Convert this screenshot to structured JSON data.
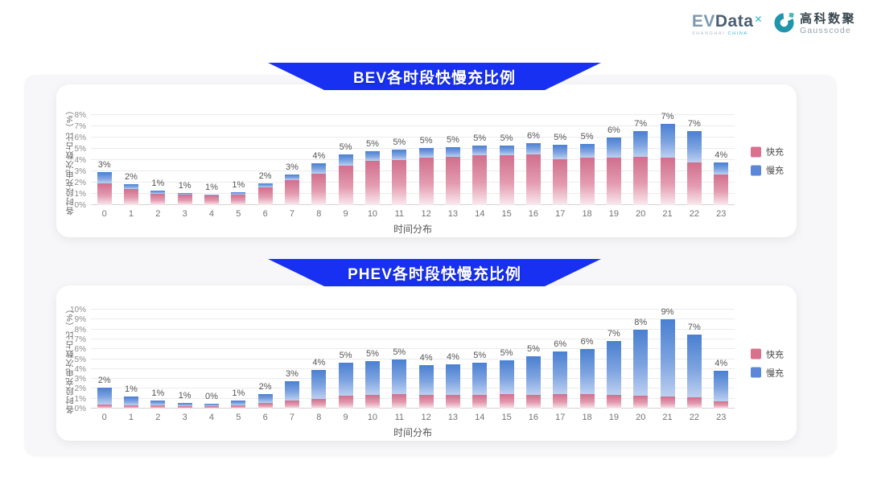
{
  "logo": {
    "evdata_ev": "EV",
    "evdata_data": "Data",
    "evdata_x": "✕",
    "evdata_sub_left": "SHANGHAI",
    "evdata_sub_right": "CHINA",
    "gausscode_cn": "高科数聚",
    "gausscode_en": "Gausscode",
    "teal": "#2fa9bd"
  },
  "colors": {
    "banner_blue": "#1730f2",
    "fast_pink": "#d9708c",
    "slow_blue": "#5c87d8",
    "outer_bg": "#f7f7f9"
  },
  "chart_data": [
    {
      "type": "bar",
      "stacked": true,
      "title": "BEV各时段快慢充比例",
      "xlabel": "时间分布",
      "ylabel": "各时段充电次数占比（%）",
      "ylim": [
        0,
        8
      ],
      "ytick_step": 1,
      "ytick_suffix": "%",
      "grid": true,
      "legend_position": "right",
      "categories": [
        0,
        1,
        2,
        3,
        4,
        5,
        6,
        7,
        8,
        9,
        10,
        11,
        12,
        13,
        14,
        15,
        16,
        17,
        18,
        19,
        20,
        21,
        22,
        23
      ],
      "series": [
        {
          "name": "快充",
          "color": "#d9708c",
          "gradient": [
            "#d06f8d",
            "#e39bb0",
            "#f9e9ee"
          ],
          "values": [
            1.9,
            1.4,
            1.0,
            0.9,
            0.85,
            0.95,
            1.55,
            2.2,
            2.8,
            3.5,
            3.9,
            4.0,
            4.2,
            4.3,
            4.45,
            4.4,
            4.5,
            4.05,
            4.2,
            4.2,
            4.3,
            4.2,
            3.8,
            2.7
          ]
        },
        {
          "name": "慢充",
          "color": "#5c87d8",
          "gradient": [
            "#4a7fd1",
            "#7ea4e0",
            "#bdd0f0"
          ],
          "values": [
            1.0,
            0.45,
            0.3,
            0.2,
            0.1,
            0.2,
            0.35,
            0.5,
            0.9,
            1.0,
            0.9,
            0.9,
            0.85,
            0.85,
            0.85,
            0.9,
            1.0,
            1.3,
            1.25,
            1.8,
            2.3,
            3.0,
            2.8,
            1.1
          ]
        }
      ],
      "total_labels": [
        "3%",
        "2%",
        "1%",
        "1%",
        "1%",
        "1%",
        "2%",
        "3%",
        "4%",
        "5%",
        "5%",
        "5%",
        "5%",
        "5%",
        "5%",
        "5%",
        "6%",
        "5%",
        "5%",
        "6%",
        "7%",
        "7%",
        "7%",
        "4%"
      ]
    },
    {
      "type": "bar",
      "stacked": true,
      "title": "PHEV各时段快慢充比例",
      "xlabel": "时间分布",
      "ylabel": "各时段充电次数占比（%）",
      "ylim": [
        0,
        10
      ],
      "ytick_step": 1,
      "ytick_suffix": "%",
      "grid": true,
      "legend_position": "right",
      "categories": [
        0,
        1,
        2,
        3,
        4,
        5,
        6,
        7,
        8,
        9,
        10,
        11,
        12,
        13,
        14,
        15,
        16,
        17,
        18,
        19,
        20,
        21,
        22,
        23
      ],
      "series": [
        {
          "name": "快充",
          "color": "#d9708c",
          "gradient": [
            "#d06f8d",
            "#e39bb0",
            "#f9e9ee"
          ],
          "values": [
            0.4,
            0.35,
            0.3,
            0.28,
            0.25,
            0.3,
            0.55,
            0.8,
            1.0,
            1.3,
            1.4,
            1.5,
            1.4,
            1.4,
            1.4,
            1.5,
            1.4,
            1.5,
            1.5,
            1.4,
            1.3,
            1.2,
            1.1,
            0.7
          ]
        },
        {
          "name": "慢充",
          "color": "#5c87d8",
          "gradient": [
            "#4a7fd1",
            "#7ea4e0",
            "#bdd0f0"
          ],
          "values": [
            1.7,
            0.85,
            0.5,
            0.32,
            0.2,
            0.55,
            0.95,
            2.0,
            2.9,
            3.3,
            3.4,
            3.5,
            3.0,
            3.1,
            3.2,
            3.4,
            3.9,
            4.3,
            4.5,
            5.4,
            6.7,
            7.8,
            6.4,
            3.1
          ]
        }
      ],
      "total_labels": [
        "2%",
        "1%",
        "1%",
        "1%",
        "0%",
        "1%",
        "2%",
        "3%",
        "4%",
        "5%",
        "5%",
        "5%",
        "4%",
        "4%",
        "5%",
        "5%",
        "5%",
        "6%",
        "6%",
        "7%",
        "8%",
        "9%",
        "7%",
        "4%"
      ]
    }
  ]
}
